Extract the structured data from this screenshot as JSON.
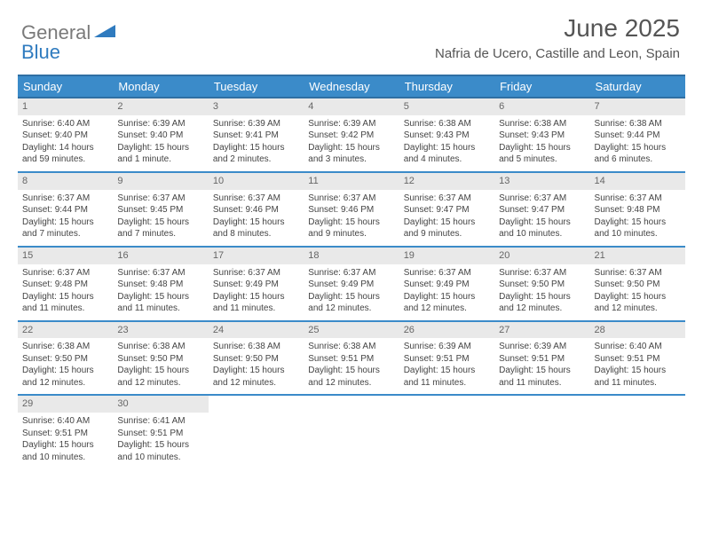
{
  "brand": {
    "part1": "General",
    "part2": "Blue"
  },
  "title": "June 2025",
  "location": "Nafria de Ucero, Castille and Leon, Spain",
  "colors": {
    "headerBg": "#3b8bc9",
    "headerBorder": "#2f6fa3",
    "dayNumBg": "#e9e9e9",
    "text": "#444",
    "brandGray": "#7a7a7a",
    "brandBlue": "#2f7bbf"
  },
  "weekdays": [
    "Sunday",
    "Monday",
    "Tuesday",
    "Wednesday",
    "Thursday",
    "Friday",
    "Saturday"
  ],
  "days": [
    {
      "n": 1,
      "sr": "6:40 AM",
      "ss": "9:40 PM",
      "dl": "14 hours and 59 minutes."
    },
    {
      "n": 2,
      "sr": "6:39 AM",
      "ss": "9:40 PM",
      "dl": "15 hours and 1 minute."
    },
    {
      "n": 3,
      "sr": "6:39 AM",
      "ss": "9:41 PM",
      "dl": "15 hours and 2 minutes."
    },
    {
      "n": 4,
      "sr": "6:39 AM",
      "ss": "9:42 PM",
      "dl": "15 hours and 3 minutes."
    },
    {
      "n": 5,
      "sr": "6:38 AM",
      "ss": "9:43 PM",
      "dl": "15 hours and 4 minutes."
    },
    {
      "n": 6,
      "sr": "6:38 AM",
      "ss": "9:43 PM",
      "dl": "15 hours and 5 minutes."
    },
    {
      "n": 7,
      "sr": "6:38 AM",
      "ss": "9:44 PM",
      "dl": "15 hours and 6 minutes."
    },
    {
      "n": 8,
      "sr": "6:37 AM",
      "ss": "9:44 PM",
      "dl": "15 hours and 7 minutes."
    },
    {
      "n": 9,
      "sr": "6:37 AM",
      "ss": "9:45 PM",
      "dl": "15 hours and 7 minutes."
    },
    {
      "n": 10,
      "sr": "6:37 AM",
      "ss": "9:46 PM",
      "dl": "15 hours and 8 minutes."
    },
    {
      "n": 11,
      "sr": "6:37 AM",
      "ss": "9:46 PM",
      "dl": "15 hours and 9 minutes."
    },
    {
      "n": 12,
      "sr": "6:37 AM",
      "ss": "9:47 PM",
      "dl": "15 hours and 9 minutes."
    },
    {
      "n": 13,
      "sr": "6:37 AM",
      "ss": "9:47 PM",
      "dl": "15 hours and 10 minutes."
    },
    {
      "n": 14,
      "sr": "6:37 AM",
      "ss": "9:48 PM",
      "dl": "15 hours and 10 minutes."
    },
    {
      "n": 15,
      "sr": "6:37 AM",
      "ss": "9:48 PM",
      "dl": "15 hours and 11 minutes."
    },
    {
      "n": 16,
      "sr": "6:37 AM",
      "ss": "9:48 PM",
      "dl": "15 hours and 11 minutes."
    },
    {
      "n": 17,
      "sr": "6:37 AM",
      "ss": "9:49 PM",
      "dl": "15 hours and 11 minutes."
    },
    {
      "n": 18,
      "sr": "6:37 AM",
      "ss": "9:49 PM",
      "dl": "15 hours and 12 minutes."
    },
    {
      "n": 19,
      "sr": "6:37 AM",
      "ss": "9:49 PM",
      "dl": "15 hours and 12 minutes."
    },
    {
      "n": 20,
      "sr": "6:37 AM",
      "ss": "9:50 PM",
      "dl": "15 hours and 12 minutes."
    },
    {
      "n": 21,
      "sr": "6:37 AM",
      "ss": "9:50 PM",
      "dl": "15 hours and 12 minutes."
    },
    {
      "n": 22,
      "sr": "6:38 AM",
      "ss": "9:50 PM",
      "dl": "15 hours and 12 minutes."
    },
    {
      "n": 23,
      "sr": "6:38 AM",
      "ss": "9:50 PM",
      "dl": "15 hours and 12 minutes."
    },
    {
      "n": 24,
      "sr": "6:38 AM",
      "ss": "9:50 PM",
      "dl": "15 hours and 12 minutes."
    },
    {
      "n": 25,
      "sr": "6:38 AM",
      "ss": "9:51 PM",
      "dl": "15 hours and 12 minutes."
    },
    {
      "n": 26,
      "sr": "6:39 AM",
      "ss": "9:51 PM",
      "dl": "15 hours and 11 minutes."
    },
    {
      "n": 27,
      "sr": "6:39 AM",
      "ss": "9:51 PM",
      "dl": "15 hours and 11 minutes."
    },
    {
      "n": 28,
      "sr": "6:40 AM",
      "ss": "9:51 PM",
      "dl": "15 hours and 11 minutes."
    },
    {
      "n": 29,
      "sr": "6:40 AM",
      "ss": "9:51 PM",
      "dl": "15 hours and 10 minutes."
    },
    {
      "n": 30,
      "sr": "6:41 AM",
      "ss": "9:51 PM",
      "dl": "15 hours and 10 minutes."
    }
  ],
  "labels": {
    "sunrise": "Sunrise:",
    "sunset": "Sunset:",
    "daylight": "Daylight:"
  },
  "layout": {
    "startOffset": 0,
    "totalCells": 35
  }
}
